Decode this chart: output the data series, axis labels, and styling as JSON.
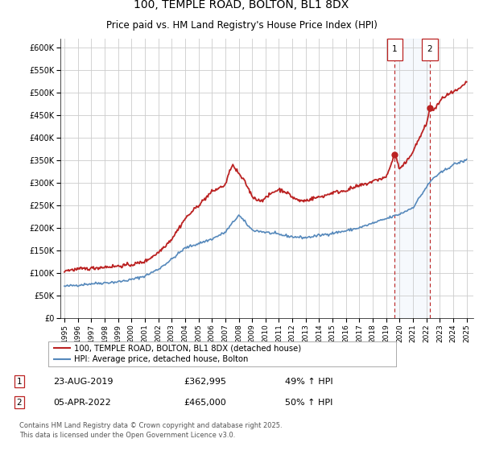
{
  "title": "100, TEMPLE ROAD, BOLTON, BL1 8DX",
  "subtitle": "Price paid vs. HM Land Registry's House Price Index (HPI)",
  "title_fontsize": 10,
  "subtitle_fontsize": 8.5,
  "background_color": "#ffffff",
  "plot_bg_color": "#ffffff",
  "grid_color": "#cccccc",
  "hpi_line_color": "#5588bb",
  "price_line_color": "#bb2222",
  "ylim": [
    0,
    620000
  ],
  "yticks": [
    0,
    50000,
    100000,
    150000,
    200000,
    250000,
    300000,
    350000,
    400000,
    450000,
    500000,
    550000,
    600000
  ],
  "ytick_labels": [
    "£0",
    "£50K",
    "£100K",
    "£150K",
    "£200K",
    "£250K",
    "£300K",
    "£350K",
    "£400K",
    "£450K",
    "£500K",
    "£550K",
    "£600K"
  ],
  "xlim_start": 1994.7,
  "xlim_end": 2025.5,
  "xtick_years": [
    1995,
    1996,
    1997,
    1998,
    1999,
    2000,
    2001,
    2002,
    2003,
    2004,
    2005,
    2006,
    2007,
    2008,
    2009,
    2010,
    2011,
    2012,
    2013,
    2014,
    2015,
    2016,
    2017,
    2018,
    2019,
    2020,
    2021,
    2022,
    2023,
    2024,
    2025
  ],
  "marker1_date": 2019.644,
  "marker1_value": 362995,
  "marker1_label": "1",
  "marker1_date_str": "23-AUG-2019",
  "marker1_price_str": "£362,995",
  "marker1_hpi_str": "49% ↑ HPI",
  "marker2_date": 2022.253,
  "marker2_value": 465000,
  "marker2_label": "2",
  "marker2_date_str": "05-APR-2022",
  "marker2_price_str": "£465,000",
  "marker2_hpi_str": "50% ↑ HPI",
  "legend_label1": "100, TEMPLE ROAD, BOLTON, BL1 8DX (detached house)",
  "legend_label2": "HPI: Average price, detached house, Bolton",
  "footer": "Contains HM Land Registry data © Crown copyright and database right 2025.\nThis data is licensed under the Open Government Licence v3.0.",
  "shade_start": 2019.644,
  "shade_end": 2022.253
}
